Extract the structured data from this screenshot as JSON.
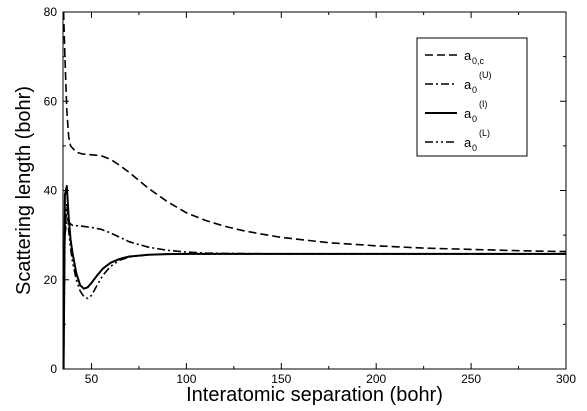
{
  "chart_data": {
    "type": "line",
    "title": "",
    "xlabel": "Interatomic separation (bohr)",
    "ylabel": "Scattering length (bohr)",
    "xlim": [
      35,
      300
    ],
    "ylim": [
      0,
      80
    ],
    "xticks": [
      50,
      100,
      150,
      200,
      250,
      300
    ],
    "xtick_labels": [
      "50",
      "100",
      "150",
      "200",
      "250",
      "300"
    ],
    "yticks": [
      0,
      20,
      40,
      60,
      80
    ],
    "ytick_labels": [
      "0",
      "20",
      "40",
      "60",
      "80"
    ],
    "grid": false,
    "legend_position": "top-right",
    "series": [
      {
        "name": "a0,c",
        "legend_base": "a",
        "legend_sub": "0,c",
        "legend_sup": "",
        "style": "dashed",
        "x": [
          35.3,
          36,
          37,
          38,
          39,
          40,
          42,
          45,
          50,
          55,
          60,
          65,
          70,
          80,
          90,
          100,
          110,
          120,
          130,
          140,
          150,
          175,
          200,
          225,
          250,
          275,
          300
        ],
        "y": [
          80,
          70,
          58,
          52,
          50,
          49.5,
          48.6,
          48.2,
          48,
          47.8,
          47,
          45.6,
          44,
          40.5,
          37.5,
          35,
          33.3,
          32,
          31,
          30.2,
          29.5,
          28.3,
          27.6,
          27.1,
          26.8,
          26.5,
          26.3
        ]
      },
      {
        "name": "a0(U)",
        "legend_base": "a",
        "legend_sub": "0",
        "legend_sup": "(U)",
        "style": "dash-dot",
        "x": [
          35.3,
          36,
          37,
          38,
          39,
          40,
          45,
          50,
          55,
          60,
          65,
          70,
          75,
          80,
          90,
          100,
          110,
          120,
          150,
          200,
          250,
          300
        ],
        "y": [
          5,
          30,
          33.5,
          33,
          32.5,
          32.2,
          32,
          31.7,
          31.3,
          30.5,
          29.5,
          28.5,
          27.9,
          27.3,
          26.6,
          26.2,
          26,
          25.9,
          25.8,
          25.8,
          25.8,
          25.8
        ]
      },
      {
        "name": "a0(I)",
        "legend_base": "a",
        "legend_sub": "0",
        "legend_sup": "(I)",
        "style": "solid",
        "x": [
          35.3,
          36,
          37,
          38,
          39,
          40,
          42,
          44,
          46,
          48,
          50,
          53,
          56,
          60,
          65,
          70,
          80,
          90,
          100,
          120,
          150,
          200,
          250,
          300
        ],
        "y": [
          0,
          39,
          41,
          34,
          29,
          26,
          21.5,
          18.8,
          18,
          18.3,
          19.3,
          21,
          22.5,
          23.8,
          24.7,
          25.2,
          25.6,
          25.75,
          25.8,
          25.8,
          25.8,
          25.8,
          25.8,
          25.8
        ]
      },
      {
        "name": "a0(L)",
        "legend_base": "a",
        "legend_sub": "0",
        "legend_sup": "(L)",
        "style": "dash-dot-dot",
        "x": [
          35.3,
          36,
          37,
          38,
          39,
          40,
          42,
          44,
          46,
          48,
          50,
          53,
          56,
          60,
          65,
          70,
          80,
          90,
          100,
          120,
          150,
          200,
          250,
          300
        ],
        "y": [
          0,
          30,
          37,
          31,
          27,
          24,
          20,
          17.5,
          16.2,
          15.8,
          16.5,
          18.8,
          21,
          23,
          24.4,
          25.1,
          25.6,
          25.75,
          25.8,
          25.8,
          25.8,
          25.8,
          25.8,
          25.8
        ]
      }
    ]
  }
}
